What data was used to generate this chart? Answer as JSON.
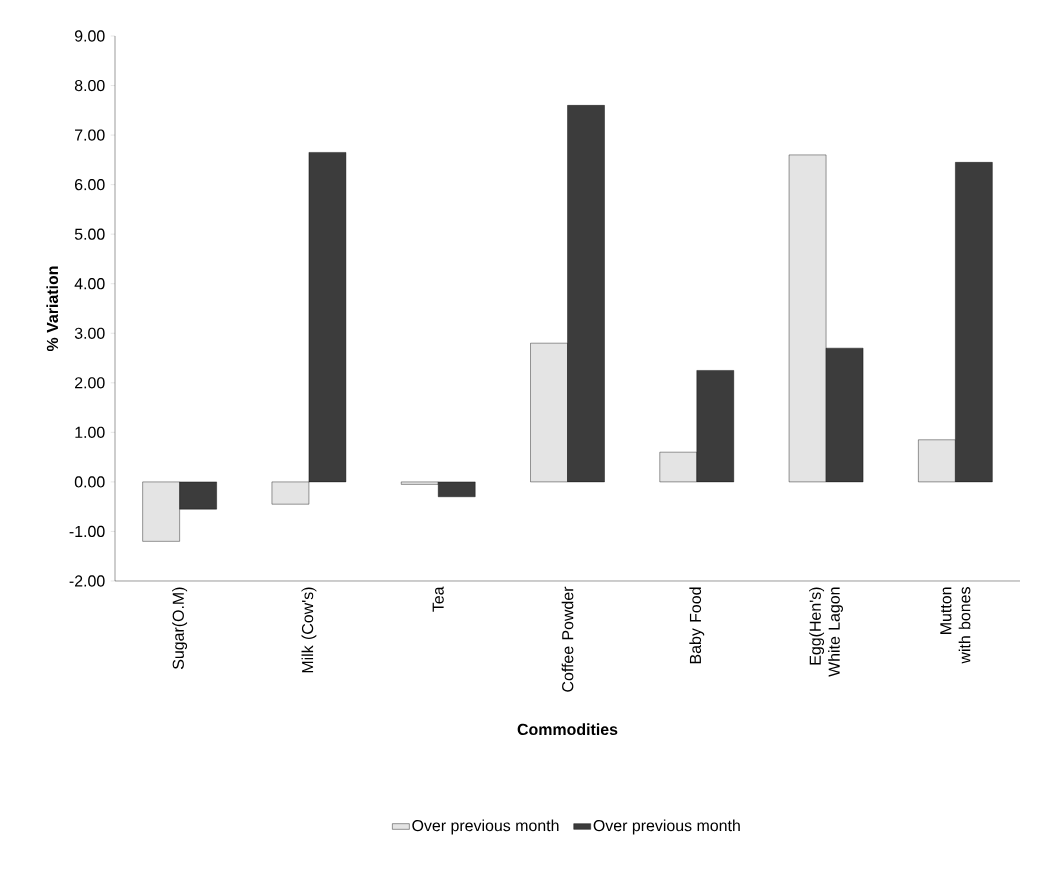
{
  "chart_data": {
    "type": "bar",
    "xlabel": "Commodities",
    "ylabel": "% Variation",
    "categories": [
      "Sugar(O.M)",
      "Milk  (Cow's)",
      "Tea",
      "Coffee Powder",
      "Baby Food",
      "Egg(Hen's) White Lagon",
      "Mutton with bones"
    ],
    "series": [
      {
        "name": "Over previous month",
        "color": "#e4e4e4",
        "values": [
          -1.2,
          -0.45,
          -0.05,
          2.8,
          0.6,
          6.6,
          0.85
        ]
      },
      {
        "name": "Over previous month",
        "color": "#3c3c3c",
        "values": [
          -0.55,
          6.65,
          -0.3,
          7.6,
          2.25,
          2.7,
          6.45
        ]
      }
    ],
    "ylim": [
      -2,
      9
    ],
    "yticks": [
      {
        "value": -2,
        "label": "-2.00"
      },
      {
        "value": -1,
        "label": "-1.00"
      },
      {
        "value": 0,
        "label": "0.00"
      },
      {
        "value": 1,
        "label": "1.00"
      },
      {
        "value": 2,
        "label": "2.00"
      },
      {
        "value": 3,
        "label": "3.00"
      },
      {
        "value": 4,
        "label": "4.00"
      },
      {
        "value": 5,
        "label": "5.00"
      },
      {
        "value": 6,
        "label": "6.00"
      },
      {
        "value": 7,
        "label": "7.00"
      },
      {
        "value": 8,
        "label": "8.00"
      },
      {
        "value": 9,
        "label": "9.00"
      }
    ],
    "legend": "bottom",
    "grid": false
  }
}
